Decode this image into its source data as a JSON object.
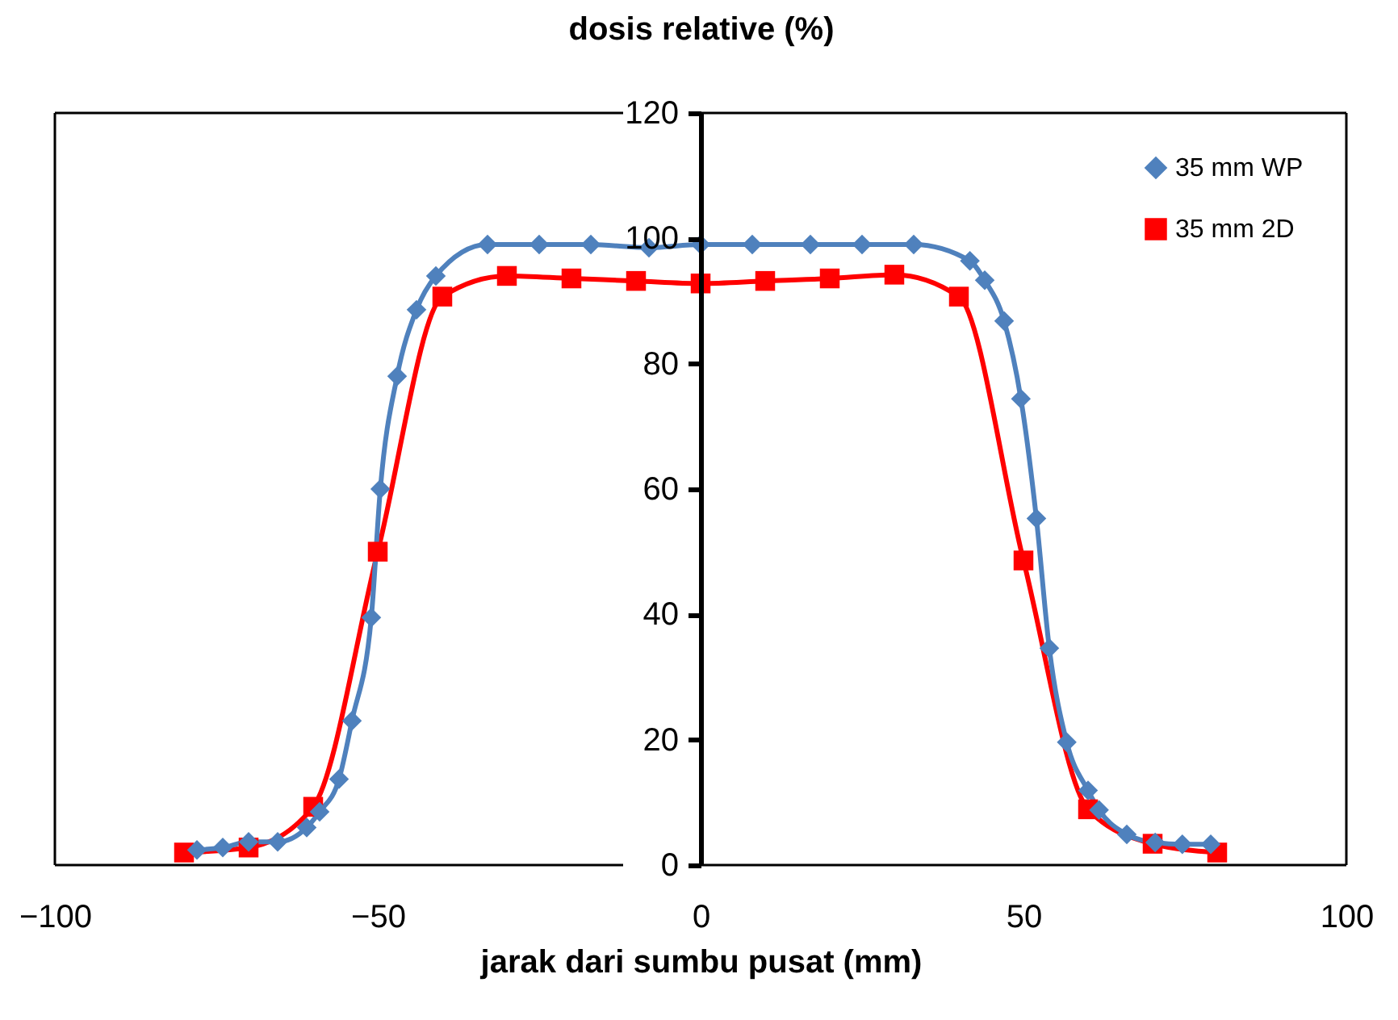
{
  "chart_data": {
    "type": "line",
    "ylabel": "dosis relative (%)",
    "xlabel": "jarak dari sumbu pusat (mm)",
    "xlim": [
      -100,
      100
    ],
    "xticks": [
      -100,
      -50,
      0,
      50,
      100
    ],
    "ylim": [
      0,
      120
    ],
    "yticks": [
      0,
      20,
      40,
      60,
      80,
      100,
      120
    ],
    "legend": "top right",
    "series": [
      {
        "name": "35 mm WP",
        "color": "#4f81bd",
        "marker": "diamond",
        "x": [
          -78,
          -74,
          -70,
          -65.5,
          -61,
          -59,
          -56,
          -54,
          -51,
          -49.6,
          -47,
          -44,
          -41,
          -33,
          -25,
          -17,
          -8,
          0,
          8,
          17,
          25,
          33,
          41.7,
          44,
          47,
          49.6,
          52,
          54,
          56.7,
          60,
          61.7,
          66,
          70.4,
          74.6,
          79
        ],
        "values": [
          2.4,
          2.8,
          3.7,
          3.7,
          6,
          8.5,
          13.7,
          23,
          39.5,
          60,
          78,
          88.6,
          94,
          99,
          99,
          99,
          98.5,
          99,
          99,
          99,
          99,
          99,
          96.4,
          93.3,
          86.8,
          74.4,
          55.3,
          34.6,
          19.6,
          11.9,
          8.8,
          4.9,
          3.6,
          3.3,
          3.3
        ]
      },
      {
        "name": "35 mm 2D",
        "color": "#ff0000",
        "marker": "square",
        "x": [
          -80,
          -70,
          -60,
          -50,
          -40,
          -30,
          -20,
          -10,
          0,
          10,
          20,
          30,
          40,
          50,
          60,
          70,
          80
        ],
        "values": [
          2,
          2.8,
          9.3,
          50,
          90.7,
          94,
          93.6,
          93.2,
          92.8,
          93.2,
          93.6,
          94.2,
          90.7,
          48.6,
          8.9,
          3.4,
          2
        ]
      }
    ]
  }
}
